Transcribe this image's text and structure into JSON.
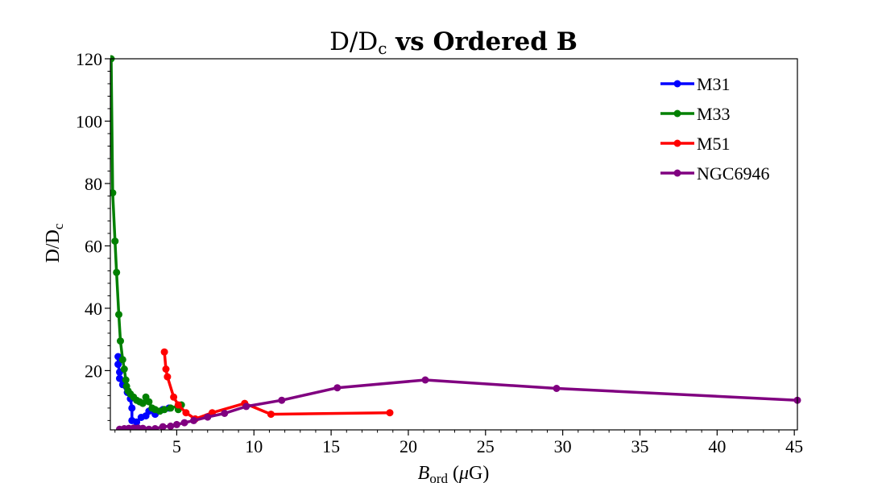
{
  "chart_data": {
    "type": "line",
    "title": {
      "prefix": "D/D",
      "sub": "c",
      "bold": " vs Ordered B"
    },
    "xlabel": {
      "main": "B",
      "sub": "ord",
      "unit_open": " (",
      "mu": "μ",
      "unit_close": "G)"
    },
    "ylabel": {
      "main": "D/D",
      "sub": "c"
    },
    "xlim": [
      0.7,
      45.2
    ],
    "ylim": [
      1,
      120
    ],
    "xticks": [
      5,
      10,
      15,
      20,
      25,
      30,
      35,
      40,
      45
    ],
    "yticks": [
      20,
      40,
      60,
      80,
      100,
      120
    ],
    "xminor_step": 1,
    "yminor_step": 4,
    "grid": false,
    "legend_position": "top-right",
    "series": [
      {
        "name": "M31",
        "color": "#0000ff",
        "points": [
          [
            1.2,
            24.5
          ],
          [
            1.2,
            22.0
          ],
          [
            1.3,
            19.5
          ],
          [
            1.3,
            17.5
          ],
          [
            1.5,
            15.5
          ],
          [
            1.8,
            13.0
          ],
          [
            2.0,
            11.0
          ],
          [
            2.1,
            8.0
          ],
          [
            2.1,
            4.0
          ],
          [
            2.4,
            3.5
          ],
          [
            2.7,
            5.0
          ],
          [
            3.0,
            5.5
          ],
          [
            3.2,
            7.0
          ],
          [
            3.6,
            6.0
          ],
          [
            4.1,
            7.5
          ],
          [
            4.5,
            8.0
          ]
        ]
      },
      {
        "name": "M33",
        "color": "#008000",
        "points": [
          [
            0.75,
            120.0
          ],
          [
            0.85,
            77.0
          ],
          [
            1.0,
            61.5
          ],
          [
            1.1,
            51.5
          ],
          [
            1.25,
            38.0
          ],
          [
            1.35,
            29.5
          ],
          [
            1.5,
            23.5
          ],
          [
            1.6,
            20.5
          ],
          [
            1.7,
            17.0
          ],
          [
            1.75,
            15.0
          ],
          [
            1.85,
            13.5
          ],
          [
            2.0,
            12.5
          ],
          [
            2.2,
            11.5
          ],
          [
            2.4,
            10.5
          ],
          [
            2.6,
            10.0
          ],
          [
            2.8,
            9.5
          ],
          [
            3.0,
            11.5
          ],
          [
            3.2,
            10.0
          ],
          [
            3.4,
            8.0
          ],
          [
            3.6,
            7.5
          ],
          [
            3.9,
            7.0
          ],
          [
            4.2,
            7.5
          ],
          [
            4.6,
            8.0
          ],
          [
            5.3,
            9.0
          ],
          [
            5.1,
            7.5
          ]
        ]
      },
      {
        "name": "M51",
        "color": "#ff0000",
        "points": [
          [
            4.2,
            26.0
          ],
          [
            4.3,
            20.5
          ],
          [
            4.4,
            18.0
          ],
          [
            4.8,
            11.5
          ],
          [
            5.1,
            9.0
          ],
          [
            5.6,
            6.5
          ],
          [
            6.2,
            4.5
          ],
          [
            7.3,
            6.5
          ],
          [
            9.4,
            9.5
          ],
          [
            11.1,
            6.0
          ],
          [
            18.8,
            6.5
          ]
        ]
      },
      {
        "name": "NGC6946",
        "color": "#800080",
        "points": [
          [
            1.3,
            1.2
          ],
          [
            1.6,
            1.4
          ],
          [
            1.9,
            1.5
          ],
          [
            2.2,
            1.6
          ],
          [
            2.5,
            1.6
          ],
          [
            2.8,
            1.5
          ],
          [
            3.2,
            1.2
          ],
          [
            3.6,
            1.4
          ],
          [
            4.1,
            2.0
          ],
          [
            4.6,
            2.2
          ],
          [
            5.0,
            2.7
          ],
          [
            5.5,
            3.3
          ],
          [
            6.1,
            4.0
          ],
          [
            7.0,
            5.1
          ],
          [
            8.1,
            6.3
          ],
          [
            9.5,
            8.5
          ],
          [
            11.8,
            10.5
          ],
          [
            15.4,
            14.5
          ],
          [
            21.1,
            17.0
          ],
          [
            29.6,
            14.3
          ],
          [
            45.2,
            10.5
          ]
        ]
      }
    ]
  }
}
